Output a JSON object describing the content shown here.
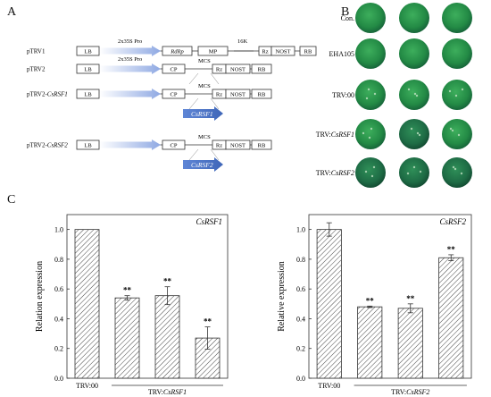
{
  "panels": {
    "a": "A",
    "b": "B",
    "c": "C"
  },
  "construct_rows": [
    {
      "label": "pTRV1",
      "label_italic": "",
      "boxes": [
        "LB",
        "RdRp",
        "MP",
        "16K",
        "Rz",
        "NOST",
        "RB"
      ],
      "promoter": "2x35S Pro",
      "insert": ""
    },
    {
      "label": "pTRV2",
      "label_italic": "",
      "boxes": [
        "LB",
        "CP",
        "MCS",
        "Rz",
        "NOST",
        "RB"
      ],
      "promoter": "2x35S Pro",
      "insert": ""
    },
    {
      "label": "pTRV2-",
      "label_italic": "CsRSF1",
      "boxes": [
        "LB",
        "CP",
        "MCS",
        "Rz",
        "NOST",
        "RB"
      ],
      "promoter": "",
      "insert": "CsRSF1"
    },
    {
      "label": "pTRV2-",
      "label_italic": "CsRSF2",
      "boxes": [
        "LB",
        "CP",
        "MCS",
        "Rz",
        "NOST",
        "RB"
      ],
      "promoter": "",
      "insert": "CsRSF2"
    }
  ],
  "leaf_rows": [
    {
      "prefix": "Con.",
      "italic": ""
    },
    {
      "prefix": "EHA105",
      "italic": ""
    },
    {
      "prefix": "TRV:00",
      "italic": ""
    },
    {
      "prefix": "TRV:",
      "italic": "CsRSF1"
    },
    {
      "prefix": "TRV:",
      "italic": "CsRSF2"
    }
  ],
  "colors": {
    "arrow_light": "#9fb4e6",
    "arrow_dark": "#4a72c4",
    "leaf_green": "#2e9a4c",
    "leaf_dark": "#1f6a3a"
  },
  "chart_data": [
    {
      "type": "bar",
      "title": "CsRSF1",
      "ylabel": "Relation expression",
      "categories": [
        "TRV:00",
        "",
        "",
        ""
      ],
      "group_label_prefix": "TRV:",
      "group_label_italic": "CsRSF1",
      "values": [
        1.0,
        0.54,
        0.555,
        0.27
      ],
      "errors": [
        0,
        0.015,
        0.06,
        0.075
      ],
      "significance": [
        "",
        "**",
        "**",
        "**"
      ],
      "ylim": [
        0.0,
        1.1
      ],
      "yticks": [
        "0.0",
        "0.2",
        "0.4",
        "0.6",
        "0.8",
        "1.0"
      ]
    },
    {
      "type": "bar",
      "title": "CsRSF2",
      "ylabel": "Relative expression",
      "categories": [
        "TRV:00",
        "",
        "",
        ""
      ],
      "group_label_prefix": "TRV:",
      "group_label_italic": "CsRSF2",
      "values": [
        1.0,
        0.48,
        0.47,
        0.81
      ],
      "errors": [
        0.045,
        0.005,
        0.03,
        0.02
      ],
      "significance": [
        "",
        "**",
        "**",
        "**"
      ],
      "ylim": [
        0.0,
        1.1
      ],
      "yticks": [
        "0.0",
        "0.2",
        "0.4",
        "0.6",
        "0.8",
        "1.0"
      ]
    }
  ]
}
